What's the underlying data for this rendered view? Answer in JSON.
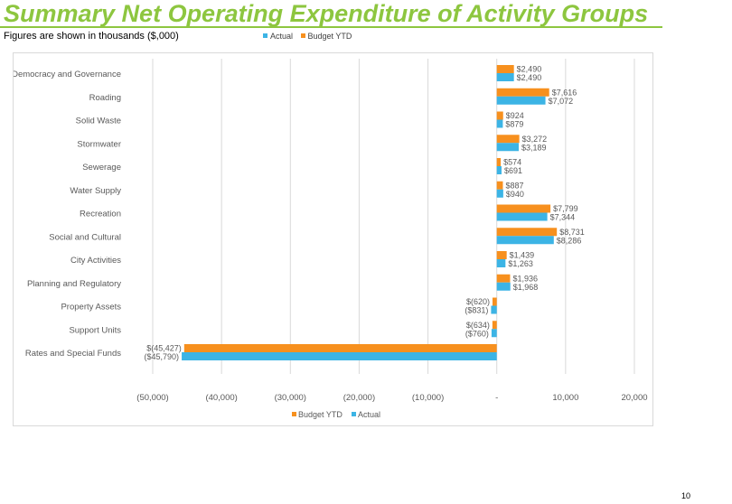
{
  "page": {
    "title": "Summary Net Operating Expenditure of Activity Groups",
    "subtitle": "Figures are shown in thousands ($,000)",
    "page_number": "10"
  },
  "colors": {
    "title": "#8dc63f",
    "actual": "#3cb4e5",
    "budget": "#f7901e",
    "axis_text": "#595959",
    "grid": "#d9d9d9"
  },
  "top_legend": [
    {
      "label": "Actual",
      "color": "#3cb4e5"
    },
    {
      "label": "Budget YTD",
      "color": "#f7901e"
    }
  ],
  "chart_data": {
    "type": "bar",
    "orientation": "horizontal",
    "categories": [
      "Democracy and Governance",
      "Roading",
      "Solid Waste",
      "Stormwater",
      "Sewerage",
      "Water Supply",
      "Recreation",
      "Social and Cultural",
      "City Activities",
      "Planning and Regulatory",
      "Property Assets",
      "Support Units",
      "Rates and Special Funds"
    ],
    "series": [
      {
        "name": "Budget YTD",
        "color": "#f7901e",
        "values": [
          2490,
          7616,
          924,
          3272,
          574,
          887,
          7799,
          8731,
          1439,
          1936,
          -620,
          -634,
          -45427
        ],
        "labels": [
          "$2,490",
          "$7,616",
          "$924",
          "$3,272",
          "$574",
          "$887",
          "$7,799",
          "$8,731",
          "$1,439",
          "$1,936",
          "$(620)",
          "$(634)",
          "$(45,427)"
        ]
      },
      {
        "name": "Actual",
        "color": "#3cb4e5",
        "values": [
          2490,
          7072,
          879,
          3189,
          691,
          940,
          7344,
          8286,
          1263,
          1968,
          -831,
          -760,
          -45790
        ],
        "labels": [
          "$2,490",
          "$7,072",
          "$879",
          "$3,189",
          "$691",
          "$940",
          "$7,344",
          "$8,286",
          "$1,263",
          "$1,968",
          "($831)",
          "($760)",
          "($45,790)"
        ]
      }
    ],
    "xlim": [
      -50000,
      20000
    ],
    "xticks": [
      -50000,
      -40000,
      -30000,
      -20000,
      -10000,
      0,
      10000,
      20000
    ],
    "xtick_labels": [
      "(50,000)",
      "(40,000)",
      "(30,000)",
      "(20,000)",
      "(10,000)",
      "-",
      "10,000",
      "20,000"
    ],
    "grid": true,
    "legend": {
      "position": "bottom",
      "entries": [
        {
          "label": "Budget YTD",
          "color": "#f7901e"
        },
        {
          "label": "Actual",
          "color": "#3cb4e5"
        }
      ]
    }
  }
}
